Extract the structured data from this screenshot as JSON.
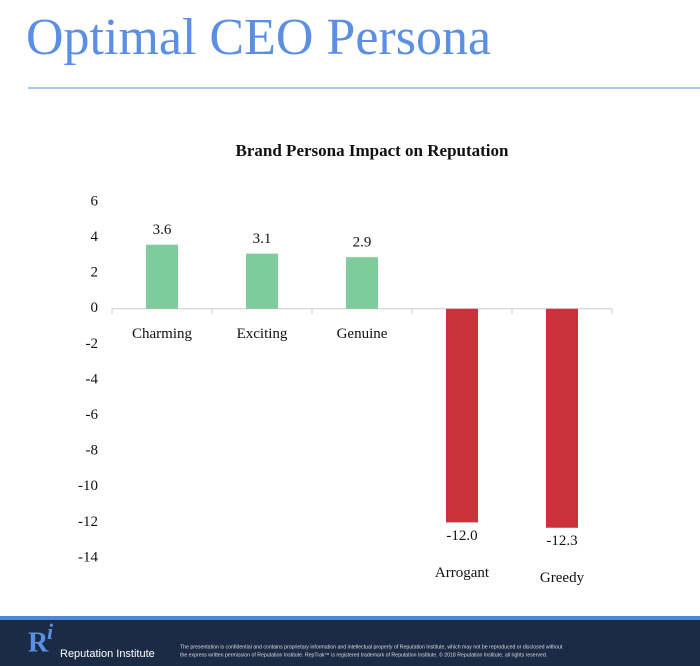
{
  "slide": {
    "title": "Optimal CEO Persona",
    "logo_r": "R",
    "logo_i": "i",
    "org": "Reputation Institute",
    "disclaimer": [
      "The presentation is confidential and contains proprietary information and intellectual property of Reputation Institute, which may not be reproduced or disclosed without",
      "the express written permission of Reputation Institute. RepTrak™ is registered trademark of Reputation Institute. © 2018 Reputation Institute, all rights reserved."
    ]
  },
  "chart_data": {
    "type": "bar",
    "title": "Brand Persona Impact on Reputation",
    "categories": [
      "Charming",
      "Exciting",
      "Genuine",
      "Arrogant",
      "Greedy"
    ],
    "values": [
      3.6,
      3.1,
      2.9,
      -12,
      -12.3
    ],
    "value_labels": [
      "3.6",
      "3.1",
      "2.9",
      "-12.0",
      "-12.3"
    ],
    "colors": [
      "#7ecb9c",
      "#7ecb9c",
      "#7ecb9c",
      "#c9323a",
      "#c9323a"
    ],
    "ylim": [
      -14,
      6
    ],
    "yticks": [
      -14,
      -12,
      -10,
      -8,
      -6,
      -4,
      -2,
      0,
      2,
      4,
      6
    ],
    "grid": false
  }
}
